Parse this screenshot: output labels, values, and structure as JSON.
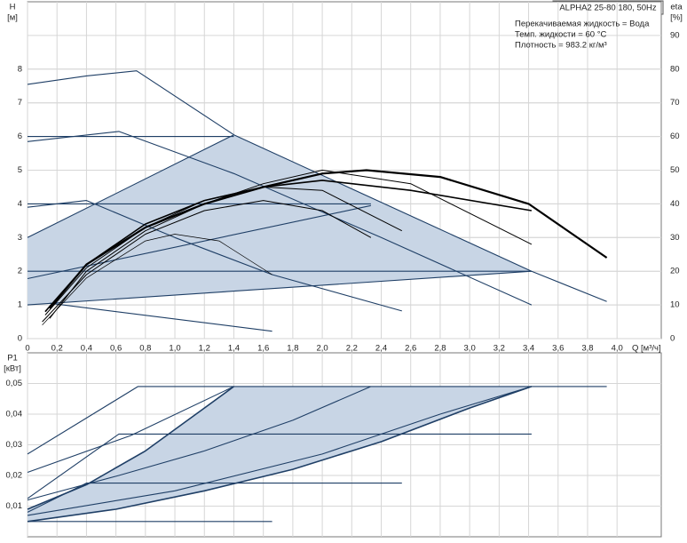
{
  "chart_data": [
    {
      "type": "line",
      "title": "ALPHA2 25-80 180, 50Hz",
      "annotations": [
        "Перекачиваемая жидкость = Вода",
        "Темп. жидкости = 60 °C",
        "Плотность = 983.2 кг/м³"
      ],
      "y_label": "H",
      "y_unit": "[м]",
      "y2_label": "eta",
      "y2_unit": "[%]",
      "x_label": "Q [м³/ч]",
      "xlim": [
        0,
        4.3
      ],
      "ylim": [
        0,
        10
      ],
      "y2lim": [
        0,
        100
      ],
      "grid": true,
      "xticks": [
        0,
        {
          "value": 0.2,
          "label": "0,2"
        },
        {
          "value": 0.4,
          "label": "0,4"
        },
        {
          "value": 0.6,
          "label": "0,6"
        },
        {
          "value": 0.8,
          "label": "0,8"
        },
        {
          "value": 1.0,
          "label": "1,0"
        },
        {
          "value": 1.2,
          "label": "1,2"
        },
        {
          "value": 1.4,
          "label": "1,4"
        },
        {
          "value": 1.6,
          "label": "1,6"
        },
        {
          "value": 1.8,
          "label": "1,8"
        },
        {
          "value": 2.0,
          "label": "2,0"
        },
        {
          "value": 2.2,
          "label": "2,2"
        },
        {
          "value": 2.4,
          "label": "2,4"
        },
        {
          "value": 2.6,
          "label": "2,6"
        },
        {
          "value": 2.8,
          "label": "2,8"
        },
        {
          "value": 3.0,
          "label": "3,0"
        },
        {
          "value": 3.2,
          "label": "3,2"
        },
        {
          "value": 3.4,
          "label": "3,4"
        },
        {
          "value": 3.6,
          "label": "3,6"
        },
        {
          "value": 3.8,
          "label": "3,8"
        },
        {
          "value": 4.0,
          "label": "4,0"
        }
      ],
      "yticks": [
        0,
        1,
        2,
        3,
        4,
        5,
        6,
        7,
        8
      ],
      "y2ticks": [
        0,
        10,
        20,
        30,
        40,
        50,
        60,
        70,
        80,
        90
      ],
      "series": [
        {
          "color": "#c8d5e5",
          "fill": true,
          "x": [
            0,
            0,
            1.4,
            3.42
          ],
          "values": [
            1,
            3,
            6.05,
            2
          ]
        },
        {
          "color": "#1f3f66",
          "x": [
            0,
            0.4,
            0.74,
            1.4,
            3.42,
            3.93
          ],
          "values": [
            7.55,
            7.8,
            7.95,
            6.05,
            2.0,
            1.1
          ]
        },
        {
          "color": "#1f3f66",
          "x": [
            0,
            0.62,
            1.4,
            2.4,
            3.42
          ],
          "values": [
            5.85,
            6.15,
            4.9,
            3.0,
            1.0
          ]
        },
        {
          "color": "#1f3f66",
          "x": [
            0,
            0.4,
            1.0,
            1.66,
            2.54
          ],
          "values": [
            3.9,
            4.1,
            3.0,
            1.9,
            0.82
          ]
        },
        {
          "color": "#1f3f66",
          "x": [
            0.15,
            1.66
          ],
          "values": [
            1.05,
            0.22
          ]
        },
        {
          "color": "#1f3f66",
          "x": [
            0,
            1.4
          ],
          "values": [
            6,
            6
          ]
        },
        {
          "color": "#1f3f66",
          "x": [
            0,
            2.33
          ],
          "values": [
            4,
            4
          ]
        },
        {
          "color": "#1f3f66",
          "x": [
            0,
            3.42
          ],
          "values": [
            2,
            2
          ]
        },
        {
          "color": "#1f3f66",
          "x": [
            0,
            1.4
          ],
          "values": [
            3,
            6.05
          ]
        },
        {
          "color": "#1f3f66",
          "x": [
            0,
            2.33
          ],
          "values": [
            1.78,
            3.95
          ]
        },
        {
          "color": "#1f3f66",
          "x": [
            0,
            3.42
          ],
          "values": [
            1,
            2
          ]
        },
        {
          "color": "#000000",
          "axis": "y2",
          "width": 2.2,
          "x": [
            0.15,
            0.4,
            0.8,
            1.2,
            1.6,
            2.0,
            2.3,
            2.8,
            3.4,
            3.93
          ],
          "values": [
            9,
            22,
            33,
            40,
            45,
            49,
            50,
            48,
            40,
            24
          ]
        },
        {
          "color": "#000000",
          "axis": "y2",
          "width": 1.6,
          "x": [
            0.12,
            0.4,
            0.8,
            1.2,
            1.6,
            2.0,
            2.6,
            3.42
          ],
          "values": [
            8,
            22,
            34,
            41,
            45,
            47,
            44,
            38
          ]
        },
        {
          "color": "#000000",
          "axis": "y2",
          "width": 1,
          "x": [
            0.15,
            0.4,
            0.8,
            1.2,
            1.6,
            2.0,
            2.6,
            3.42
          ],
          "values": [
            6,
            20,
            32,
            40,
            46,
            50,
            46,
            28
          ]
        },
        {
          "color": "#000000",
          "axis": "y2",
          "width": 1,
          "x": [
            0.12,
            0.4,
            0.8,
            1.2,
            1.6,
            2.0,
            2.54
          ],
          "values": [
            7,
            21,
            33,
            41,
            45,
            44,
            32
          ]
        },
        {
          "color": "#000000",
          "axis": "y2",
          "width": 1,
          "x": [
            0.1,
            0.4,
            0.8,
            1.2,
            1.6,
            2.0,
            2.33
          ],
          "values": [
            5,
            19,
            31,
            38,
            41,
            38,
            30
          ]
        },
        {
          "color": "#000000",
          "axis": "y2",
          "width": 0.7,
          "x": [
            0.1,
            0.4,
            0.8,
            1.0,
            1.3,
            1.66
          ],
          "values": [
            4,
            18,
            29,
            31,
            29,
            19
          ]
        }
      ]
    },
    {
      "type": "line",
      "y_label": "P1",
      "y_unit": "[кВт]",
      "xlim": [
        0,
        4.3
      ],
      "ylim": [
        0,
        0.06
      ],
      "grid": true,
      "xticks": [
        0,
        0.2,
        0.4,
        0.6,
        0.8,
        1.0,
        1.2,
        1.4,
        1.6,
        1.8,
        2.0,
        2.2,
        2.4,
        2.6,
        2.8,
        3.0,
        3.2,
        3.4,
        3.6,
        3.8,
        4.0
      ],
      "yticks": [
        {
          "value": 0.01,
          "label": "0,01"
        },
        {
          "value": 0.02,
          "label": "0,02"
        },
        {
          "value": 0.03,
          "label": "0,03"
        },
        {
          "value": 0.04,
          "label": "0,04"
        },
        {
          "value": 0.05,
          "label": "0,05"
        }
      ],
      "series": [
        {
          "color": "#c8d5e5",
          "fill": true,
          "x": [
            0,
            0.4,
            0.8,
            1.2,
            1.4,
            3.42,
            3.0,
            2.4,
            1.8,
            1.2,
            0.6,
            0
          ],
          "values": [
            0.009,
            0.017,
            0.028,
            0.042,
            0.049,
            0.049,
            0.042,
            0.031,
            0.022,
            0.015,
            0.009,
            0.005
          ]
        },
        {
          "color": "#1f3f66",
          "width": 1.6,
          "x": [
            0,
            0.4,
            0.8,
            1.2,
            1.4
          ],
          "values": [
            0.009,
            0.017,
            0.028,
            0.042,
            0.049
          ]
        },
        {
          "color": "#1f3f66",
          "width": 1.6,
          "x": [
            0,
            0.6,
            1.2,
            1.8,
            2.4,
            3.0,
            3.42
          ],
          "values": [
            0.005,
            0.009,
            0.015,
            0.022,
            0.031,
            0.042,
            0.049
          ]
        },
        {
          "color": "#1f3f66",
          "x": [
            0,
            0.75,
            3.93
          ],
          "values": [
            0.027,
            0.049,
            0.049
          ]
        },
        {
          "color": "#1f3f66",
          "x": [
            0,
            0.7,
            1.4
          ],
          "values": [
            0.021,
            0.033,
            0.049
          ]
        },
        {
          "color": "#1f3f66",
          "x": [
            0,
            0.62,
            1.2,
            1.8,
            2.33
          ],
          "values": [
            0.012,
            0.02,
            0.028,
            0.038,
            0.049
          ]
        },
        {
          "color": "#1f3f66",
          "x": [
            0,
            0.62,
            3.42
          ],
          "values": [
            0.0125,
            0.0335,
            0.0335
          ]
        },
        {
          "color": "#1f3f66",
          "x": [
            0,
            0.4,
            2.54
          ],
          "values": [
            0.008,
            0.0175,
            0.0175
          ]
        },
        {
          "color": "#1f3f66",
          "x": [
            0,
            1.0,
            2.0,
            2.8,
            3.42
          ],
          "values": [
            0.007,
            0.015,
            0.027,
            0.04,
            0.049
          ]
        },
        {
          "color": "#1f3f66",
          "x": [
            0,
            1.66
          ],
          "values": [
            0.005,
            0.005
          ]
        }
      ]
    }
  ]
}
